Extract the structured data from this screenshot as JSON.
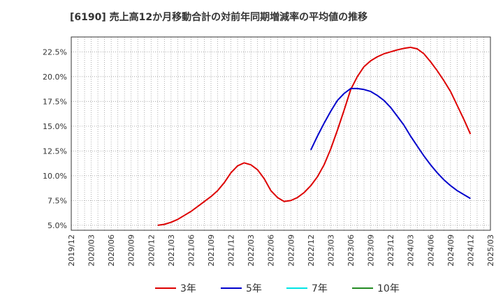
{
  "chart_data": {
    "type": "line",
    "title": "[6190]  売上高12か月移動合計の対前年同期増減率の平均値の推移",
    "xlabel": "",
    "ylabel": "",
    "ylim": [
      4.5,
      24.0
    ],
    "y_ticks": [
      "5.0%",
      "7.5%",
      "10.0%",
      "12.5%",
      "15.0%",
      "17.5%",
      "20.0%",
      "22.5%"
    ],
    "y_tick_values": [
      5.0,
      7.5,
      10.0,
      12.5,
      15.0,
      17.5,
      20.0,
      22.5
    ],
    "x_ticks": [
      "2019/12",
      "2020/03",
      "2020/06",
      "2020/09",
      "2020/12",
      "2021/03",
      "2021/06",
      "2021/09",
      "2021/12",
      "2022/03",
      "2022/06",
      "2022/09",
      "2022/12",
      "2023/03",
      "2023/06",
      "2023/09",
      "2023/12",
      "2024/03",
      "2024/06",
      "2024/09",
      "2024/12",
      "2025/03"
    ],
    "grid": true,
    "legend_position": "bottom",
    "series": [
      {
        "name": "3年",
        "color": "#dd0000",
        "x": [
          "2021/01",
          "2021/02",
          "2021/03",
          "2021/04",
          "2021/05",
          "2021/06",
          "2021/07",
          "2021/08",
          "2021/09",
          "2021/10",
          "2021/11",
          "2021/12",
          "2022/01",
          "2022/02",
          "2022/03",
          "2022/04",
          "2022/05",
          "2022/06",
          "2022/07",
          "2022/08",
          "2022/09",
          "2022/10",
          "2022/11",
          "2022/12",
          "2023/01",
          "2023/02",
          "2023/03",
          "2023/04",
          "2023/05",
          "2023/06",
          "2023/07",
          "2023/08",
          "2023/09",
          "2023/10",
          "2023/11",
          "2023/12",
          "2024/01",
          "2024/02",
          "2024/03",
          "2024/04",
          "2024/05",
          "2024/06",
          "2024/07",
          "2024/08",
          "2024/09",
          "2024/10",
          "2024/11",
          "2024/12"
        ],
        "values": [
          5.0,
          5.1,
          5.3,
          5.6,
          6.0,
          6.4,
          6.9,
          7.4,
          7.9,
          8.5,
          9.3,
          10.3,
          11.0,
          11.3,
          11.1,
          10.6,
          9.7,
          8.5,
          7.8,
          7.4,
          7.5,
          7.8,
          8.3,
          9.0,
          9.9,
          11.1,
          12.7,
          14.6,
          16.6,
          18.7,
          20.0,
          21.0,
          21.6,
          22.0,
          22.3,
          22.5,
          22.7,
          22.85,
          22.95,
          22.8,
          22.3,
          21.5,
          20.6,
          19.6,
          18.5,
          17.1,
          15.7,
          14.2
        ]
      },
      {
        "name": "5年",
        "color": "#0000cc",
        "x": [
          "2022/12",
          "2023/01",
          "2023/02",
          "2023/03",
          "2023/04",
          "2023/05",
          "2023/06",
          "2023/07",
          "2023/08",
          "2023/09",
          "2023/10",
          "2023/11",
          "2023/12",
          "2024/01",
          "2024/02",
          "2024/03",
          "2024/04",
          "2024/05",
          "2024/06",
          "2024/07",
          "2024/08",
          "2024/09",
          "2024/10",
          "2024/11",
          "2024/12"
        ],
        "values": [
          12.6,
          14.0,
          15.3,
          16.5,
          17.6,
          18.3,
          18.8,
          18.8,
          18.7,
          18.5,
          18.1,
          17.6,
          16.9,
          16.0,
          15.1,
          14.0,
          13.0,
          12.0,
          11.1,
          10.3,
          9.6,
          9.0,
          8.5,
          8.1,
          7.7
        ]
      },
      {
        "name": "7年",
        "color": "#00e5e5",
        "x": [],
        "values": []
      },
      {
        "name": "10年",
        "color": "#228b22",
        "x": [],
        "values": []
      }
    ]
  }
}
